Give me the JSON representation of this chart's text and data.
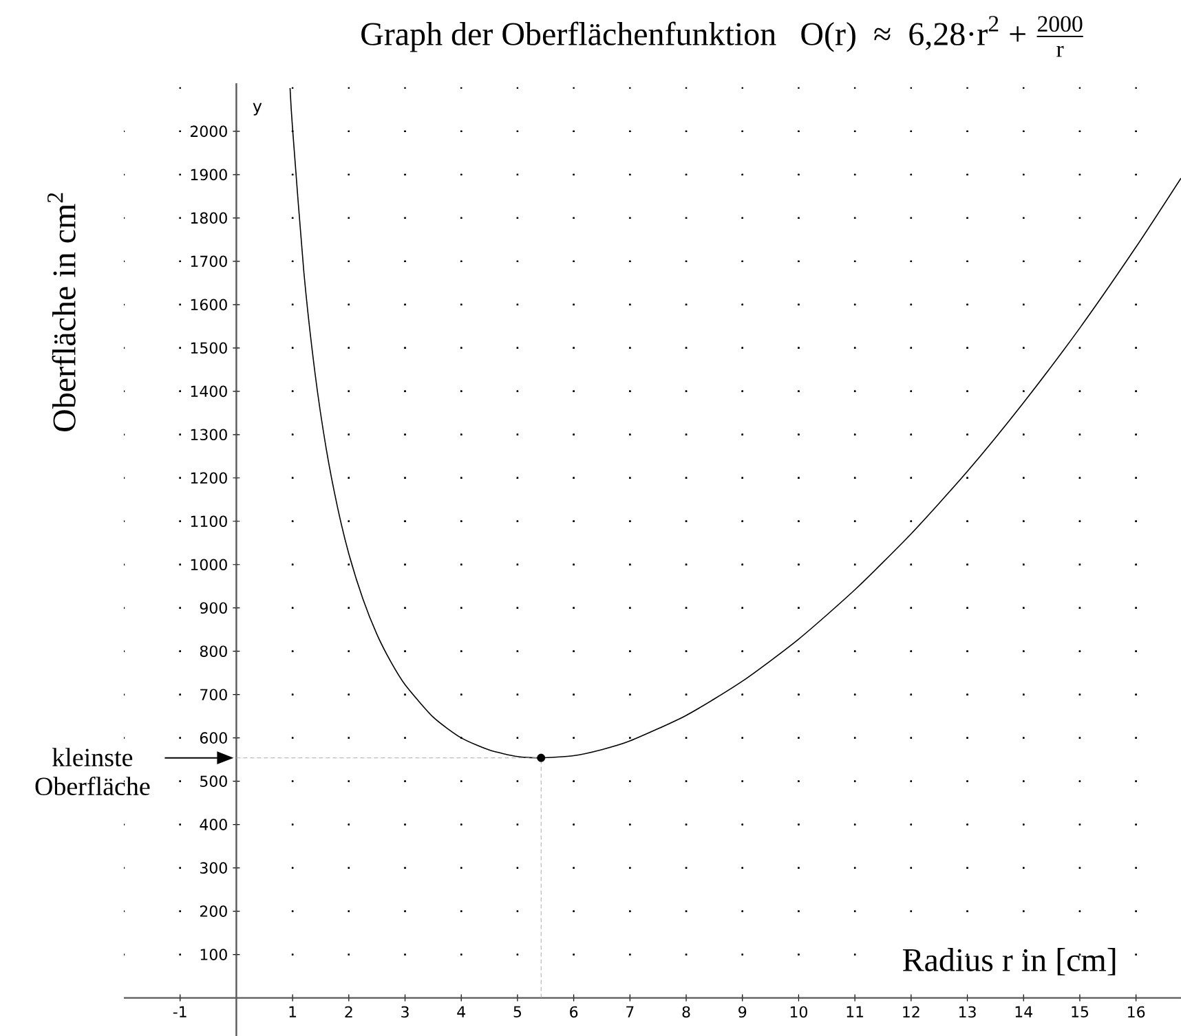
{
  "chart_data": {
    "type": "line",
    "title": "Graph der Oberflächenfunktion",
    "xlabel": "Radius r in [cm]",
    "ylabel": "Oberfläche in cm$^{2}$",
    "annotations": [
      "\\text{O(r)\\ \\ ≈\\ \\ 6,28·r}^{\\text{2}}\\text{ + }\\frac{\\text{2000}}{\\text{r}}",
      "kleinste Oberfläche",
      "y"
    ],
    "series": [
      {
        "type": "line",
        "marker": "none",
        "color": "#000000",
        "x": [
          0.955,
          1,
          1.2,
          1.4,
          1.6,
          1.8,
          2,
          2.25,
          2.5,
          2.75,
          3,
          3.5,
          4,
          4.5,
          5,
          5.42,
          6,
          6.5,
          7,
          8,
          9,
          10,
          11,
          12,
          13,
          14,
          15,
          16,
          16.8
        ],
        "values": [
          2100,
          2006,
          1676,
          1441,
          1266,
          1132,
          1025,
          921,
          839,
          775,
          723,
          648,
          600,
          572,
          557,
          554,
          559,
          573,
          593,
          652,
          731,
          828,
          942,
          1071,
          1215,
          1374,
          1546,
          1733,
          1892
        ]
      },
      {
        "type": "scatter",
        "color": "#000000",
        "x": [
          5.42
        ],
        "values": [
          554
        ]
      }
    ],
    "ref_lines": [
      {
        "axis": "y",
        "value": 554,
        "color": "#aaaaaa",
        "line_style": "dashed"
      },
      {
        "axis": "x",
        "value": 5.42,
        "color": "#aaaaaa",
        "line_style": "dashed"
      }
    ],
    "xlim": [
      -2,
      16.8
    ],
    "ylim": [
      -88,
      2111
    ],
    "xticks": [
      -1,
      1,
      2,
      3,
      4,
      5,
      6,
      7,
      8,
      9,
      10,
      11,
      12,
      13,
      14,
      15,
      16
    ],
    "yticks": [
      100,
      200,
      300,
      400,
      500,
      600,
      700,
      800,
      900,
      1000,
      1100,
      1200,
      1300,
      1400,
      1500,
      1600,
      1700,
      1800,
      1900,
      2000
    ],
    "grid": true,
    "line_style": "solid"
  }
}
